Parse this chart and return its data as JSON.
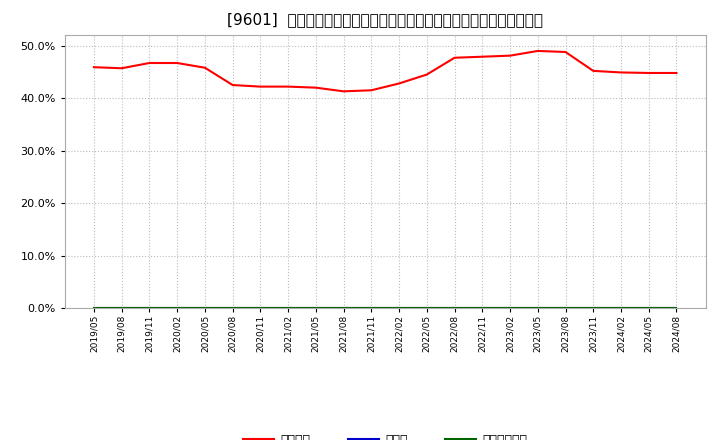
{
  "title": "[9601]  自己資本、のれん、繰延税金資産の総資産に対する比率の推移",
  "x_labels": [
    "2019/05",
    "2019/08",
    "2019/11",
    "2020/02",
    "2020/05",
    "2020/08",
    "2020/11",
    "2021/02",
    "2021/05",
    "2021/08",
    "2021/11",
    "2022/02",
    "2022/05",
    "2022/08",
    "2022/11",
    "2023/02",
    "2023/05",
    "2023/08",
    "2023/11",
    "2024/02",
    "2024/05",
    "2024/08"
  ],
  "jikoshihon": [
    45.9,
    45.7,
    46.7,
    46.7,
    45.8,
    42.5,
    42.2,
    42.2,
    42.0,
    41.3,
    41.5,
    42.8,
    44.5,
    47.7,
    47.9,
    48.1,
    49.0,
    48.8,
    45.2,
    44.9,
    44.8,
    44.8
  ],
  "noren": [
    0.0,
    0.0,
    0.0,
    0.0,
    0.0,
    0.0,
    0.0,
    0.0,
    0.0,
    0.0,
    0.0,
    0.0,
    0.0,
    0.0,
    0.0,
    0.0,
    0.0,
    0.0,
    0.0,
    0.0,
    0.0,
    0.0
  ],
  "kuennnozei": [
    0.0,
    0.0,
    0.0,
    0.0,
    0.0,
    0.0,
    0.0,
    0.0,
    0.0,
    0.0,
    0.0,
    0.0,
    0.0,
    0.0,
    0.0,
    0.0,
    0.0,
    0.0,
    0.0,
    0.0,
    0.0,
    0.0
  ],
  "jikoshihon_color": "#ff0000",
  "noren_color": "#0000cc",
  "kuennnozei_color": "#006600",
  "ylim": [
    0.0,
    52.0
  ],
  "yticks": [
    0.0,
    10.0,
    20.0,
    30.0,
    40.0,
    50.0
  ],
  "background_color": "#ffffff",
  "plot_bg_color": "#ffffff",
  "grid_color": "#bbbbbb",
  "title_fontsize": 11,
  "legend_labels": [
    "自己資本",
    "のれん",
    "繰延税金資産"
  ]
}
